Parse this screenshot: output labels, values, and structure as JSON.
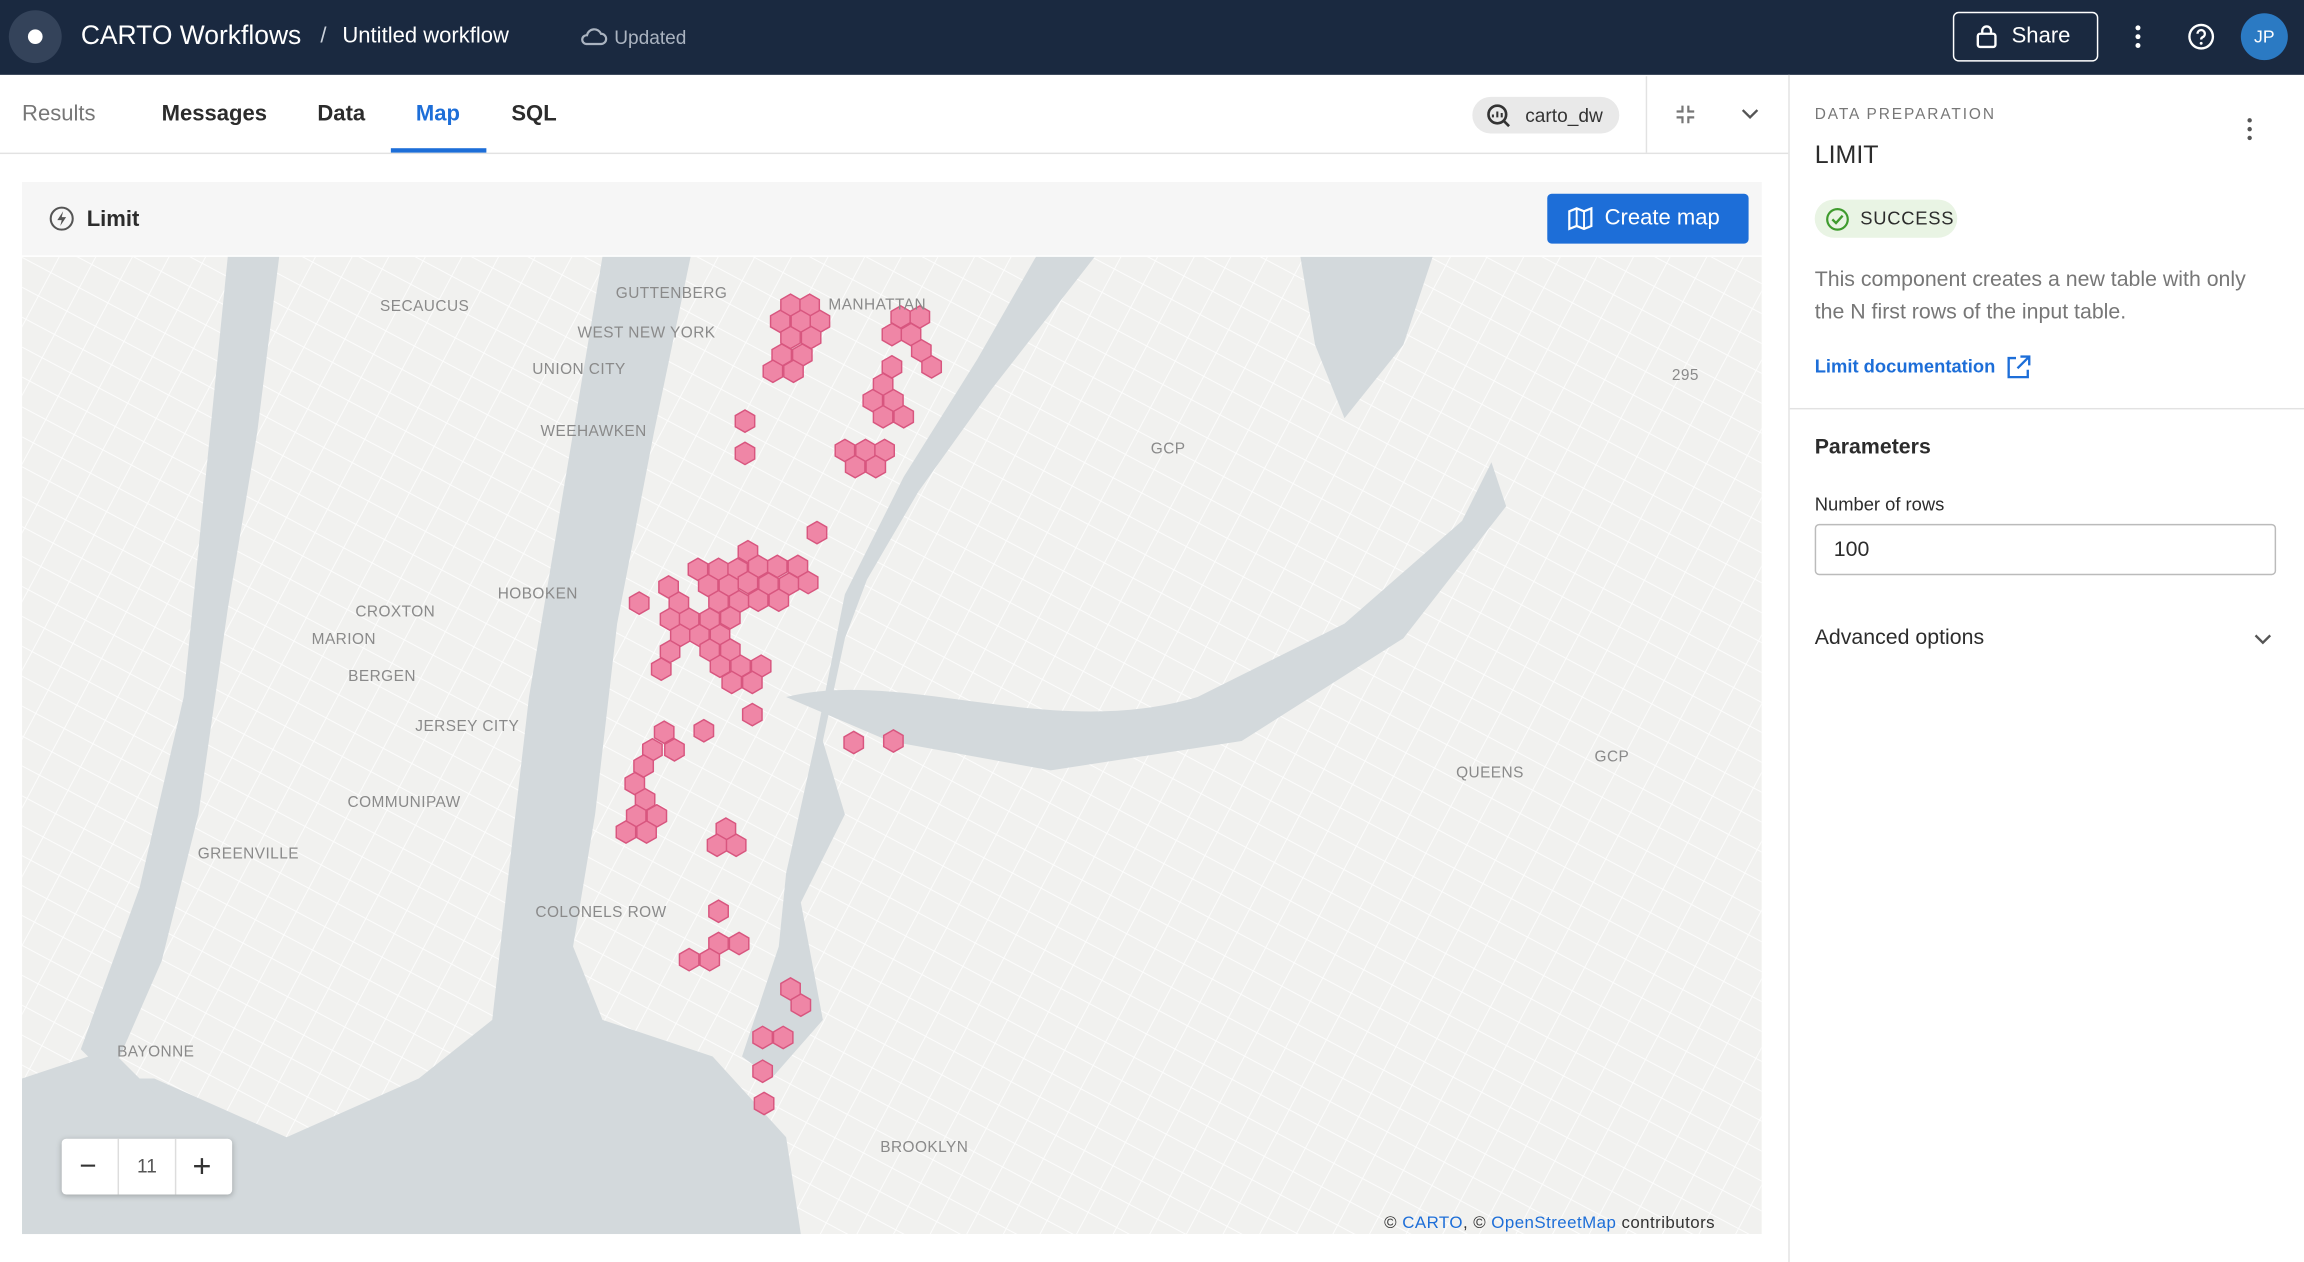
{
  "header": {
    "app": "CARTO Workflows",
    "separator": "/",
    "workflow": "Untitled workflow",
    "status": "Updated",
    "share": "Share",
    "avatar": "JP"
  },
  "tabs": [
    "Results",
    "Messages",
    "Data",
    "Map",
    "SQL"
  ],
  "connection": "carto_dw",
  "map_panel": {
    "title": "Limit",
    "create_button": "Create map",
    "zoom_level": "11",
    "attribution": [
      "© ",
      "CARTO",
      ", © ",
      "OpenStreetMap",
      " contributors"
    ],
    "labels": [
      "GUTTENBERG",
      "MANHATTAN",
      "SECAUCUS",
      "WEST NEW YORK",
      "UNION CITY",
      "295",
      "WEEHAWKEN",
      "GCP",
      "HOBOKEN",
      "CROXTON",
      "MARION",
      "BERGEN",
      "JERSEY CITY",
      "QUEENS",
      "GCP",
      "COMMUNIPAW",
      "GREENVILLE",
      "COLONELS ROW",
      "BAYONNE",
      "BROOKLYN"
    ]
  },
  "sidebar": {
    "category": "DATA PREPARATION",
    "title": "LIMIT",
    "status": "SUCCESS",
    "description": "This component creates a new table with only the N first rows of the input table.",
    "doc_link": "Limit documentation",
    "parameters_heading": "Parameters",
    "field_label": "Number of rows",
    "field_value": "100",
    "advanced": "Advanced options"
  }
}
